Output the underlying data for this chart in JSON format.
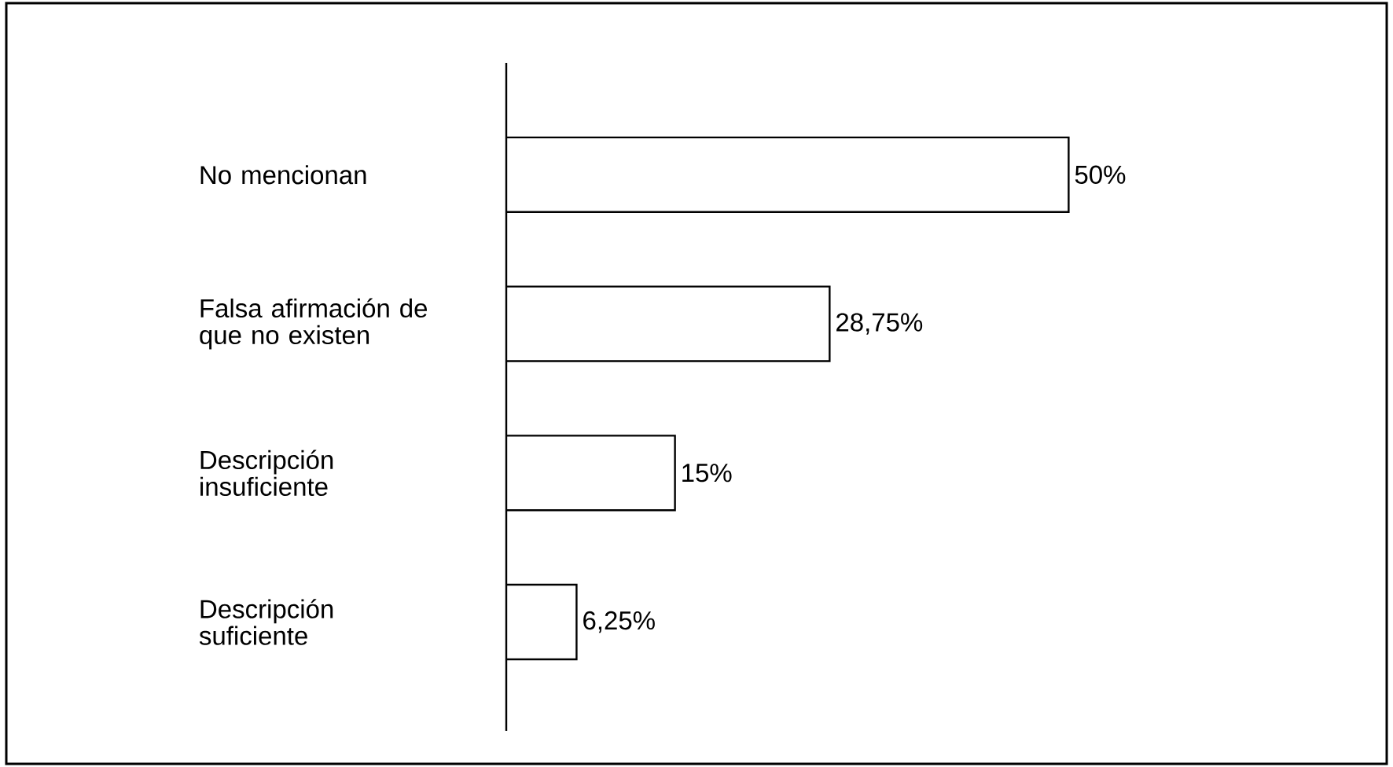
{
  "chart_data": {
    "type": "bar",
    "orientation": "horizontal",
    "categories": [
      "No mencionan",
      "Falsa afirmación de que no existen",
      "Descripción insuficiente",
      "Descripción suficiente"
    ],
    "values": [
      50,
      28.75,
      15,
      6.25
    ],
    "value_labels": [
      "50%",
      "28,75%",
      "15%",
      "6,25%"
    ],
    "color": "#ffffff",
    "xlim": [
      0,
      78
    ],
    "tick_labels": "y"
  }
}
